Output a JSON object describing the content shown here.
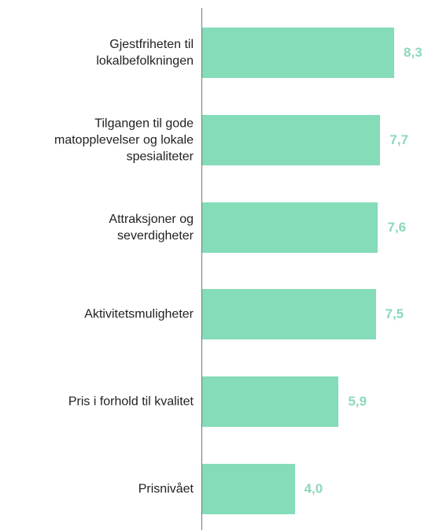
{
  "chart_data": {
    "type": "bar",
    "orientation": "horizontal",
    "categories": [
      "Gjestfriheten til\nlokalbefolkningen",
      "Tilgangen til gode\nmatopplevelser og lokale\nspesialiteter",
      "Attraksjoner og\nseverdigheter",
      "Aktivitetsmuligheter",
      "Pris i forhold til kvalitet",
      "Prisnivået"
    ],
    "values": [
      8.3,
      7.7,
      7.6,
      7.5,
      5.9,
      4.0
    ],
    "value_labels": [
      "8,3",
      "7,7",
      "7,6",
      "7,5",
      "5,9",
      "4,0"
    ],
    "color": "#84dcb8"
  }
}
